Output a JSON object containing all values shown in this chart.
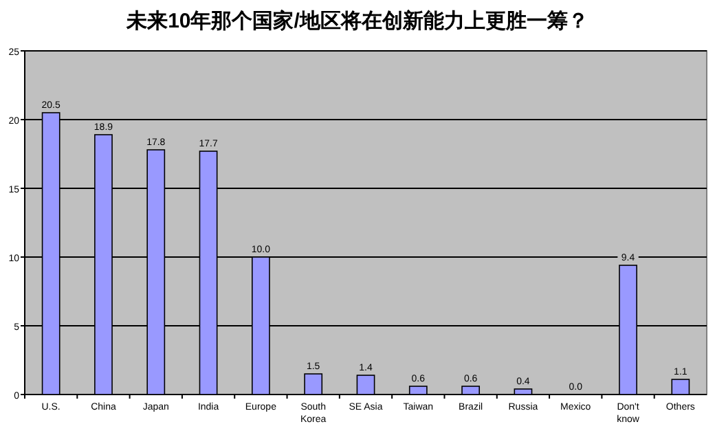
{
  "chart_data": {
    "type": "bar",
    "title": "未来10年那个国家/地区将在创新能力上更胜一筹？",
    "categories": [
      "U.S.",
      "China",
      "Japan",
      "India",
      "Europe",
      "South Korea",
      "SE Asia",
      "Taiwan",
      "Brazil",
      "Russia",
      "Mexico",
      "Don't know",
      "Others"
    ],
    "values": [
      20.5,
      18.9,
      17.8,
      17.7,
      10.0,
      1.5,
      1.4,
      0.6,
      0.6,
      0.4,
      0.0,
      9.4,
      1.1
    ],
    "value_labels": [
      "20.5",
      "18.9",
      "17.8",
      "17.7",
      "10.0",
      "1.5",
      "1.4",
      "0.6",
      "0.6",
      "0.4",
      "0.0",
      "9.4",
      "1.1"
    ],
    "color": "#9999ff",
    "ylim": [
      0,
      25
    ],
    "yticks": [
      0,
      5,
      10,
      15,
      20,
      25
    ],
    "grid": "y"
  }
}
